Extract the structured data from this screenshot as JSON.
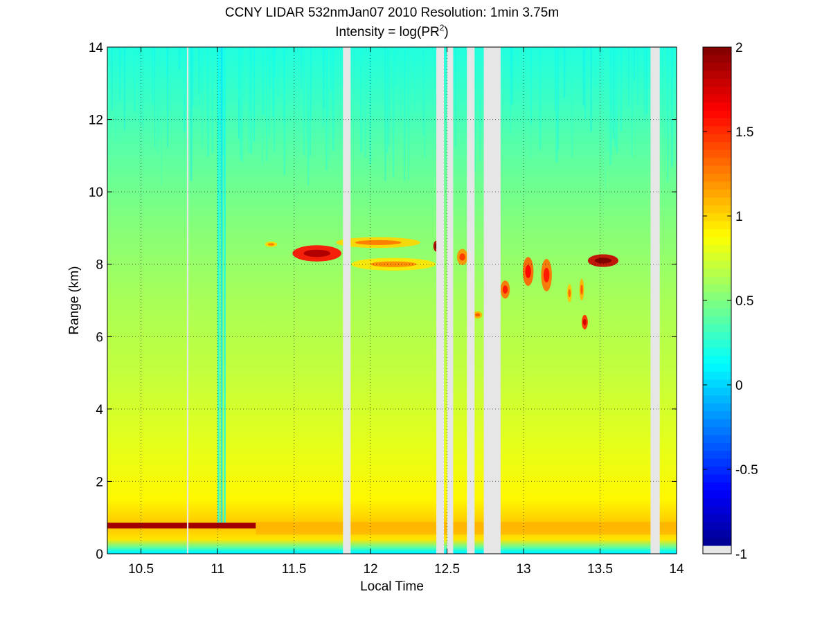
{
  "chart_data": {
    "type": "heatmap",
    "title": "CCNY LIDAR 532nmJan07 2010 Resolution: 1min 3.75m",
    "subtitle_prefix": "Intensity = log(PR",
    "subtitle_sup": "2",
    "subtitle_suffix": ")",
    "xlabel": "Local Time",
    "ylabel": "Range (km)",
    "xlim": [
      10.28,
      14.0
    ],
    "ylim": [
      0,
      14
    ],
    "x_ticks": [
      10.5,
      11,
      11.5,
      12,
      12.5,
      13,
      13.5,
      14
    ],
    "x_tick_labels": [
      "10.5",
      "11",
      "11.5",
      "12",
      "12.5",
      "13",
      "13.5",
      "14"
    ],
    "y_ticks": [
      0,
      2,
      4,
      6,
      8,
      10,
      12,
      14
    ],
    "y_tick_labels": [
      "0",
      "2",
      "4",
      "6",
      "8",
      "10",
      "12",
      "14"
    ],
    "grid": true,
    "colorbar": {
      "colormap": "jet",
      "range": [
        -1,
        2
      ],
      "ticks": [
        -1,
        -0.5,
        0,
        0.5,
        1,
        1.5,
        2
      ],
      "tick_labels": [
        "-1",
        "-0.5",
        "0",
        "0.5",
        "1",
        "1.5",
        "2"
      ],
      "missing_color": "#e6e6e6"
    },
    "background_profile": [
      {
        "range_km": 0.05,
        "value": 0.1
      },
      {
        "range_km": 0.15,
        "value": 0.35
      },
      {
        "range_km": 0.4,
        "value": 0.95
      },
      {
        "range_km": 0.75,
        "value": 1.05
      },
      {
        "range_km": 1.5,
        "value": 0.9
      },
      {
        "range_km": 3.0,
        "value": 0.8
      },
      {
        "range_km": 5.0,
        "value": 0.7
      },
      {
        "range_km": 7.0,
        "value": 0.62
      },
      {
        "range_km": 9.0,
        "value": 0.52
      },
      {
        "range_km": 11.0,
        "value": 0.4
      },
      {
        "range_km": 12.5,
        "value": 0.3
      },
      {
        "range_km": 14.0,
        "value": 0.22
      }
    ],
    "boundary_layer_top": {
      "range_km": 0.78,
      "value": 1.9,
      "x_start": 10.28,
      "x_end": 11.25
    },
    "missing_data_intervals": [
      [
        10.8,
        10.81
      ],
      [
        11.82,
        11.87
      ],
      [
        12.43,
        12.48
      ],
      [
        12.5,
        12.54
      ],
      [
        12.63,
        12.68
      ],
      [
        12.74,
        12.85
      ],
      [
        13.83,
        13.89
      ]
    ],
    "low_signal_columns": [
      {
        "x": 11.0,
        "value": 0.15
      },
      {
        "x": 11.02,
        "value": 0.05
      },
      {
        "x": 11.04,
        "value": 0.2
      }
    ],
    "cloud_features": [
      {
        "x": 11.65,
        "range_km": 8.3,
        "value": 1.6,
        "x_width": 0.32,
        "range_height": 0.45
      },
      {
        "x": 12.05,
        "range_km": 8.6,
        "value": 1.0,
        "x_width": 0.55,
        "range_height": 0.3
      },
      {
        "x": 12.15,
        "range_km": 8.0,
        "value": 0.95,
        "x_width": 0.55,
        "range_height": 0.35
      },
      {
        "x": 11.35,
        "range_km": 8.55,
        "value": 1.0,
        "x_width": 0.08,
        "range_height": 0.15
      },
      {
        "x": 12.43,
        "range_km": 8.5,
        "value": 1.85,
        "x_width": 0.04,
        "range_height": 0.3
      },
      {
        "x": 12.6,
        "range_km": 8.2,
        "value": 1.2,
        "x_width": 0.07,
        "range_height": 0.45
      },
      {
        "x": 12.7,
        "range_km": 6.6,
        "value": 1.1,
        "x_width": 0.06,
        "range_height": 0.2
      },
      {
        "x": 12.88,
        "range_km": 7.3,
        "value": 1.3,
        "x_width": 0.06,
        "range_height": 0.5
      },
      {
        "x": 13.03,
        "range_km": 7.8,
        "value": 1.35,
        "x_width": 0.07,
        "range_height": 0.8
      },
      {
        "x": 13.15,
        "range_km": 7.7,
        "value": 1.3,
        "x_width": 0.07,
        "range_height": 0.9
      },
      {
        "x": 13.3,
        "range_km": 7.2,
        "value": 1.05,
        "x_width": 0.03,
        "range_height": 0.5
      },
      {
        "x": 13.4,
        "range_km": 6.4,
        "value": 1.5,
        "x_width": 0.04,
        "range_height": 0.4
      },
      {
        "x": 13.38,
        "range_km": 7.3,
        "value": 1.1,
        "x_width": 0.03,
        "range_height": 0.6
      },
      {
        "x": 13.52,
        "range_km": 8.1,
        "value": 1.8,
        "x_width": 0.2,
        "range_height": 0.35
      }
    ]
  }
}
